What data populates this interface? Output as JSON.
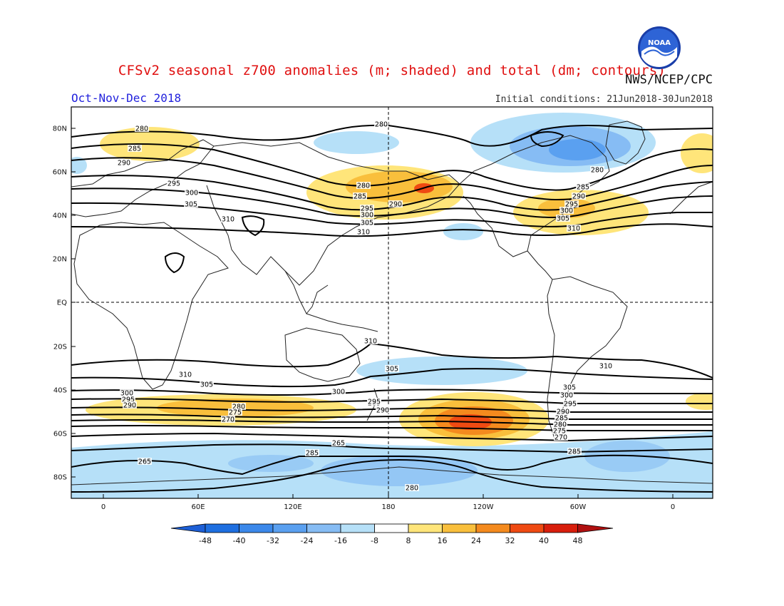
{
  "header": {
    "title": "CFSv2 seasonal z700 anomalies (m; shaded) and total (dm; contours)",
    "agency": "NWS/NCEP/CPC",
    "season": "Oct-Nov-Dec 2018",
    "initial_conditions": "Initial conditions: 21Jun2018-30Jun2018",
    "logo_text": "NOAA"
  },
  "axes": {
    "lat_labels": [
      "80N",
      "60N",
      "40N",
      "20N",
      "EQ",
      "20S",
      "40S",
      "60S",
      "80S"
    ],
    "lon_labels": [
      "0",
      "60E",
      "120E",
      "180",
      "120W",
      "60W",
      "0"
    ]
  },
  "colorbar": {
    "labels": [
      "-48",
      "-40",
      "-32",
      "-24",
      "-16",
      "-8",
      "8",
      "16",
      "24",
      "32",
      "40",
      "48"
    ],
    "colors": [
      "#1e6fe0",
      "#3b88ea",
      "#5aa0f0",
      "#86bcf4",
      "#b6e0f8",
      "#ffffff",
      "#ffe57a",
      "#f9bf3c",
      "#f48a1e",
      "#ef4a12",
      "#d81e0c"
    ],
    "end_low": "#1d5fd6",
    "end_high": "#b01010"
  },
  "contour_labels": [
    {
      "text": "280"
    },
    {
      "text": "285"
    },
    {
      "text": "290"
    },
    {
      "text": "295"
    },
    {
      "text": "300"
    },
    {
      "text": "305"
    },
    {
      "text": "310"
    },
    {
      "text": "280"
    },
    {
      "text": "280"
    },
    {
      "text": "285"
    },
    {
      "text": "295"
    },
    {
      "text": "300"
    },
    {
      "text": "305"
    },
    {
      "text": "290"
    },
    {
      "text": "310"
    },
    {
      "text": "280"
    },
    {
      "text": "285"
    },
    {
      "text": "290"
    },
    {
      "text": "295"
    },
    {
      "text": "300"
    },
    {
      "text": "305"
    },
    {
      "text": "310"
    },
    {
      "text": "310"
    },
    {
      "text": "305"
    },
    {
      "text": "310"
    },
    {
      "text": "310"
    },
    {
      "text": "305"
    },
    {
      "text": "300"
    },
    {
      "text": "295"
    },
    {
      "text": "290"
    },
    {
      "text": "285"
    },
    {
      "text": "280"
    },
    {
      "text": "275"
    },
    {
      "text": "270"
    },
    {
      "text": "300"
    },
    {
      "text": "295"
    },
    {
      "text": "290"
    },
    {
      "text": "305"
    },
    {
      "text": "300"
    },
    {
      "text": "295"
    },
    {
      "text": "290"
    },
    {
      "text": "285"
    },
    {
      "text": "280"
    },
    {
      "text": "275"
    },
    {
      "text": "270"
    },
    {
      "text": "265"
    },
    {
      "text": "285"
    },
    {
      "text": "265"
    },
    {
      "text": "285"
    },
    {
      "text": "280"
    }
  ]
}
